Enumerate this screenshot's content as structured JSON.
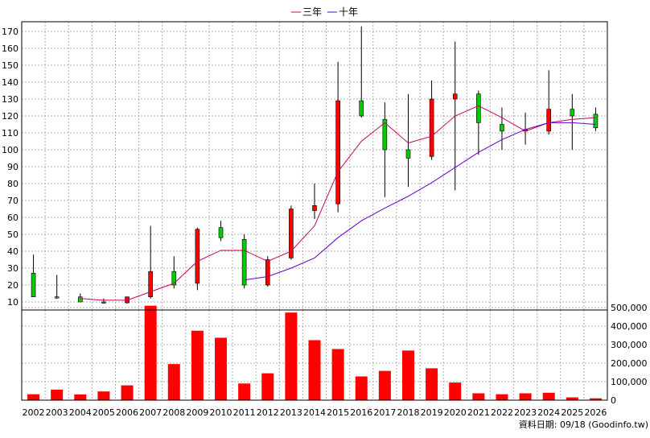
{
  "legend": [
    {
      "label": "三年",
      "color": "#cc0066"
    },
    {
      "label": "十年",
      "color": "#6600cc"
    }
  ],
  "source_note": "資料日期: 09/18  (Goodinfo.tw)",
  "colors": {
    "up": "#ff0000",
    "down": "#00cc00",
    "volume": "#ff0000",
    "grid": "#b0b0b0",
    "wick": "#000000"
  },
  "chart_data": [
    {
      "type": "candlestick",
      "categories": [
        "2002",
        "2003",
        "2004",
        "2005",
        "2006",
        "2007",
        "2008",
        "2009",
        "2010",
        "2011",
        "2012",
        "2013",
        "2014",
        "2015",
        "2016",
        "2017",
        "2018",
        "2019",
        "2020",
        "2021",
        "2022",
        "2023",
        "2024",
        "2025",
        "2026"
      ],
      "ylim": [
        5,
        175
      ],
      "yticks": [
        10,
        20,
        30,
        40,
        50,
        60,
        70,
        80,
        90,
        100,
        110,
        120,
        130,
        140,
        150,
        160,
        170
      ],
      "grid": true,
      "candles": [
        {
          "x": "2002",
          "open": 27,
          "close": 13,
          "high": 38,
          "low": 13
        },
        {
          "x": "2003",
          "open": 13,
          "close": 12.5,
          "high": 26,
          "low": 12
        },
        {
          "x": "2004",
          "open": 13,
          "close": 10,
          "high": 15,
          "low": 10
        },
        {
          "x": "2005",
          "open": 10,
          "close": 9.5,
          "high": 12,
          "low": 9
        },
        {
          "x": "2006",
          "open": 9.5,
          "close": 13,
          "high": 13,
          "low": 9
        },
        {
          "x": "2007",
          "open": 13,
          "close": 28,
          "high": 55,
          "low": 12
        },
        {
          "x": "2008",
          "open": 28,
          "close": 20,
          "high": 37,
          "low": 18
        },
        {
          "x": "2009",
          "open": 21,
          "close": 53,
          "high": 54,
          "low": 17
        },
        {
          "x": "2010",
          "open": 54,
          "close": 48,
          "high": 58,
          "low": 46
        },
        {
          "x": "2011",
          "open": 47,
          "close": 20,
          "high": 50,
          "low": 18
        },
        {
          "x": "2012",
          "open": 20,
          "close": 35,
          "high": 37,
          "low": 19
        },
        {
          "x": "2013",
          "open": 36,
          "close": 65,
          "high": 67,
          "low": 35
        },
        {
          "x": "2014",
          "open": 64,
          "close": 67,
          "high": 80,
          "low": 59
        },
        {
          "x": "2015",
          "open": 68,
          "close": 129,
          "high": 152,
          "low": 63
        },
        {
          "x": "2016",
          "open": 129,
          "close": 120,
          "high": 173,
          "low": 119
        },
        {
          "x": "2017",
          "open": 118,
          "close": 100,
          "high": 128,
          "low": 72
        },
        {
          "x": "2018",
          "open": 100,
          "close": 95,
          "high": 133,
          "low": 78
        },
        {
          "x": "2019",
          "open": 96,
          "close": 130,
          "high": 141,
          "low": 94
        },
        {
          "x": "2020",
          "open": 130,
          "close": 133,
          "high": 164,
          "low": 76
        },
        {
          "x": "2021",
          "open": 133,
          "close": 116,
          "high": 135,
          "low": 97
        },
        {
          "x": "2022",
          "open": 115,
          "close": 111,
          "high": 125,
          "low": 100
        },
        {
          "x": "2023",
          "open": 111,
          "close": 112,
          "high": 122,
          "low": 103
        },
        {
          "x": "2024",
          "open": 111,
          "close": 124,
          "high": 147,
          "low": 109
        },
        {
          "x": "2025",
          "open": 124,
          "close": 120,
          "high": 133,
          "low": 100
        },
        {
          "x": "2026",
          "open": 121,
          "close": 113,
          "high": 125,
          "low": 111
        }
      ],
      "lines": [
        {
          "name": "三年",
          "color": "#cc0066",
          "points": [
            {
              "x": "2004",
              "y": 12
            },
            {
              "x": "2005",
              "y": 11
            },
            {
              "x": "2006",
              "y": 11
            },
            {
              "x": "2007",
              "y": 16
            },
            {
              "x": "2008",
              "y": 21
            },
            {
              "x": "2009",
              "y": 34
            },
            {
              "x": "2010",
              "y": 40.5
            },
            {
              "x": "2011",
              "y": 40.5
            },
            {
              "x": "2012",
              "y": 34
            },
            {
              "x": "2013",
              "y": 40
            },
            {
              "x": "2014",
              "y": 55
            },
            {
              "x": "2015",
              "y": 87
            },
            {
              "x": "2016",
              "y": 105
            },
            {
              "x": "2017",
              "y": 116
            },
            {
              "x": "2018",
              "y": 104
            },
            {
              "x": "2019",
              "y": 108
            },
            {
              "x": "2020",
              "y": 120
            },
            {
              "x": "2021",
              "y": 126
            },
            {
              "x": "2022",
              "y": 119
            },
            {
              "x": "2023",
              "y": 111
            },
            {
              "x": "2024",
              "y": 116
            },
            {
              "x": "2025",
              "y": 118
            },
            {
              "x": "2026",
              "y": 119
            }
          ]
        },
        {
          "name": "十年",
          "color": "#6600cc",
          "points": [
            {
              "x": "2011",
              "y": 23
            },
            {
              "x": "2012",
              "y": 25
            },
            {
              "x": "2013",
              "y": 30
            },
            {
              "x": "2014",
              "y": 36
            },
            {
              "x": "2015",
              "y": 48
            },
            {
              "x": "2016",
              "y": 58
            },
            {
              "x": "2017",
              "y": 65.5
            },
            {
              "x": "2018",
              "y": 72.5
            },
            {
              "x": "2019",
              "y": 80.5
            },
            {
              "x": "2020",
              "y": 89.5
            },
            {
              "x": "2021",
              "y": 98.5
            },
            {
              "x": "2022",
              "y": 106
            },
            {
              "x": "2023",
              "y": 112
            },
            {
              "x": "2024",
              "y": 116
            },
            {
              "x": "2025",
              "y": 116
            },
            {
              "x": "2026",
              "y": 115
            }
          ]
        }
      ]
    },
    {
      "type": "bar",
      "categories": [
        "2002",
        "2003",
        "2004",
        "2005",
        "2006",
        "2007",
        "2008",
        "2009",
        "2010",
        "2011",
        "2012",
        "2013",
        "2014",
        "2015",
        "2016",
        "2017",
        "2018",
        "2019",
        "2020",
        "2021",
        "2022",
        "2023",
        "2024",
        "2025",
        "2026"
      ],
      "values": [
        32000,
        57000,
        31000,
        47000,
        80000,
        510000,
        195000,
        375000,
        337000,
        90000,
        145000,
        473000,
        324000,
        276000,
        128000,
        158000,
        268000,
        172000,
        95000,
        37000,
        32000,
        37000,
        40000,
        15000,
        10000
      ],
      "ylim": [
        0,
        520000
      ],
      "yticks": [
        0,
        100000,
        200000,
        300000,
        400000,
        500000
      ],
      "ytick_labels": [
        "0",
        "100,000",
        "200,000",
        "300,000",
        "400,000",
        "500,000"
      ],
      "grid": true
    }
  ]
}
